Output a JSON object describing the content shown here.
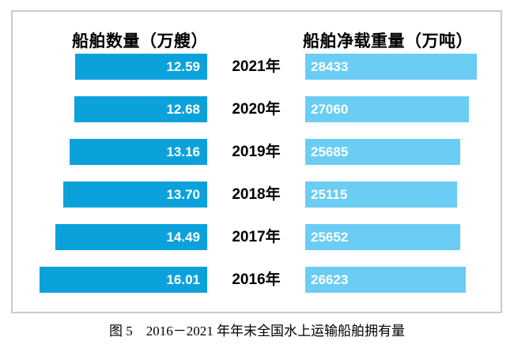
{
  "headers": {
    "left": "船舶数量（万艘）",
    "right": "船舶净载重量（万吨）"
  },
  "caption": "图 5　2016－2021 年年末全国水上运输船舶拥有量",
  "colors": {
    "left_bar": "#0ba2dc",
    "right_bar": "#6bcdf3",
    "frame_border": "#cbcbcb",
    "value_text": "#ffffff",
    "label_text": "#000000"
  },
  "chart_data": {
    "type": "bar",
    "variant": "butterfly",
    "orientation": "horizontal",
    "grid": false,
    "title": "图 5　2016－2021 年年末全国水上运输船舶拥有量",
    "categories": [
      "2021年",
      "2020年",
      "2019年",
      "2018年",
      "2017年",
      "2016年"
    ],
    "series": [
      {
        "name": "船舶数量（万艘）",
        "direction": "right-to-left",
        "color": "#0ba2dc",
        "values": [
          12.59,
          12.68,
          13.16,
          13.7,
          14.49,
          16.01
        ],
        "value_labels": [
          "12.59",
          "12.68",
          "13.16",
          "13.70",
          "14.49",
          "16.01"
        ],
        "axis_range": [
          0,
          16.01
        ]
      },
      {
        "name": "船舶净载重量（万吨）",
        "direction": "left-to-right",
        "color": "#6bcdf3",
        "values": [
          28433,
          27060,
          25685,
          25115,
          25652,
          26623
        ],
        "value_labels": [
          "28433",
          "27060",
          "25685",
          "25115",
          "25652",
          "26623"
        ],
        "axis_range": [
          0,
          28433
        ]
      }
    ]
  }
}
